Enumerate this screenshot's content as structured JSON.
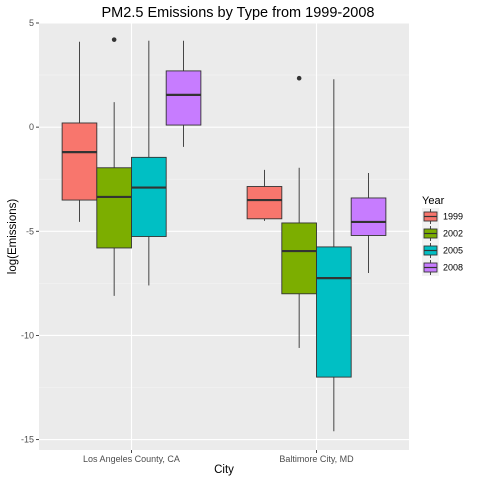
{
  "chart_data": {
    "type": "boxplot",
    "title": "PM2.5 Emissions by Type from 1999-2008",
    "xlabel": "City",
    "ylabel": "log(Emissions)",
    "categories": [
      "Los Angeles County, CA",
      "Baltimore City, MD"
    ],
    "y_ticks": [
      "5",
      "0",
      "-5",
      "-10",
      "-15"
    ],
    "ylim": [
      -15.5,
      5
    ],
    "grid": true,
    "legend": {
      "title": "Year",
      "position": "right",
      "entries": [
        "1999",
        "2002",
        "2005",
        "2008"
      ]
    },
    "series": [
      {
        "name": "1999",
        "color": "#f8766d",
        "boxes": [
          {
            "whisker_low": -4.55,
            "q1": -3.5,
            "median": -1.2,
            "q3": 0.2,
            "whisker_high": 4.1,
            "outliers": []
          },
          {
            "whisker_low": -4.5,
            "q1": -4.4,
            "median": -3.5,
            "q3": -2.85,
            "whisker_high": -2.05,
            "outliers": []
          }
        ]
      },
      {
        "name": "2002",
        "color": "#7cae00",
        "boxes": [
          {
            "whisker_low": -8.1,
            "q1": -5.8,
            "median": -3.35,
            "q3": -1.95,
            "whisker_high": 1.2,
            "outliers": [
              4.2
            ]
          },
          {
            "whisker_low": -10.6,
            "q1": -8.0,
            "median": -5.95,
            "q3": -4.6,
            "whisker_high": -1.95,
            "outliers": [
              2.35
            ]
          }
        ]
      },
      {
        "name": "2005",
        "color": "#00bfc4",
        "boxes": [
          {
            "whisker_low": -7.6,
            "q1": -5.25,
            "median": -2.9,
            "q3": -1.45,
            "whisker_high": 4.15,
            "outliers": []
          },
          {
            "whisker_low": -14.6,
            "q1": -12.0,
            "median": -7.25,
            "q3": -5.75,
            "whisker_high": 2.3,
            "outliers": []
          }
        ]
      },
      {
        "name": "2008",
        "color": "#c77cff",
        "boxes": [
          {
            "whisker_low": -0.95,
            "q1": 0.1,
            "median": 1.55,
            "q3": 2.7,
            "whisker_high": 4.15,
            "outliers": []
          },
          {
            "whisker_low": -7.0,
            "q1": -5.2,
            "median": -4.55,
            "q3": -3.4,
            "whisker_high": -2.2,
            "outliers": []
          }
        ]
      }
    ]
  }
}
